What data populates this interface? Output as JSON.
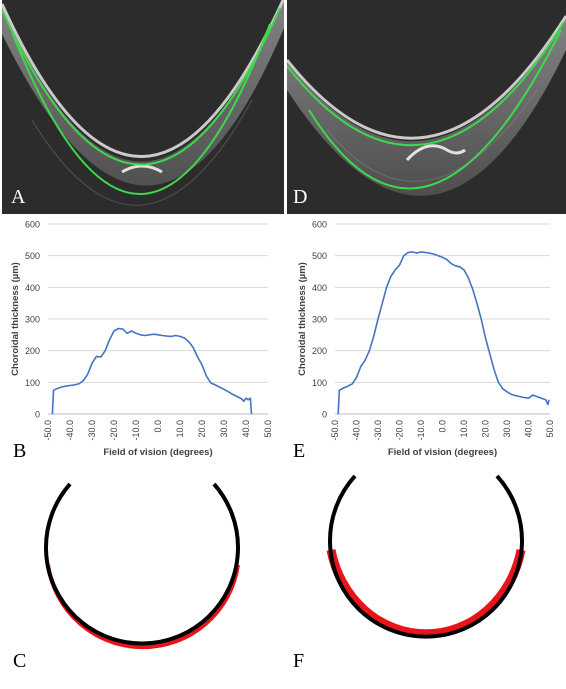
{
  "panels": {
    "A": {
      "letter": "A"
    },
    "B": {
      "letter": "B"
    },
    "C": {
      "letter": "C"
    },
    "D": {
      "letter": "D"
    },
    "E": {
      "letter": "E"
    },
    "F": {
      "letter": "F"
    }
  },
  "colors": {
    "oct_background": "#2a2a2a",
    "segmentation_line": "#3dd94a",
    "series_line": "#4472c4",
    "sclera_outline": "#000000",
    "choroid_outline": "#e8141a",
    "choroid_fill": "#efdcc0"
  },
  "chart_data": [
    {
      "type": "line",
      "panel": "B",
      "xlabel": "Field of vision (degrees)",
      "ylabel": "Choroidal thickness (µm)",
      "ylim": [
        0,
        600
      ],
      "xlim": [
        -50,
        50
      ],
      "yticks": [
        "0",
        "100",
        "200",
        "300",
        "400",
        "500",
        "600"
      ],
      "xticks": [
        "-50.0",
        "-40.0",
        "-30.0",
        "-20.0",
        "-10.0",
        "0.0",
        "10.0",
        "20.0",
        "30.0",
        "40.0",
        "50.0"
      ],
      "grid": "horizontal",
      "x": [
        -48,
        -47.5,
        -46,
        -44,
        -42,
        -40,
        -38,
        -36,
        -34,
        -32,
        -30,
        -28,
        -26,
        -24,
        -22,
        -20,
        -18,
        -16,
        -14,
        -12,
        -10,
        -8,
        -6,
        -4,
        -2,
        0,
        2,
        4,
        6,
        8,
        10,
        12,
        14,
        16,
        18,
        20,
        22,
        24,
        26,
        28,
        30,
        32,
        34,
        36,
        38,
        39,
        40,
        41,
        42,
        42.5
      ],
      "y": [
        0,
        75,
        80,
        85,
        88,
        90,
        92,
        95,
        105,
        125,
        160,
        182,
        180,
        200,
        235,
        262,
        270,
        268,
        255,
        262,
        255,
        250,
        248,
        250,
        252,
        250,
        248,
        246,
        245,
        248,
        245,
        240,
        228,
        210,
        180,
        155,
        120,
        98,
        92,
        85,
        78,
        70,
        62,
        55,
        48,
        40,
        50,
        45,
        50,
        0
      ]
    },
    {
      "type": "line",
      "panel": "E",
      "xlabel": "Field of vision (degrees)",
      "ylabel": "Choroidal thickness (µm)",
      "ylim": [
        0,
        600
      ],
      "xlim": [
        -50,
        50
      ],
      "yticks": [
        "0",
        "100",
        "200",
        "300",
        "400",
        "500",
        "600"
      ],
      "xticks": [
        "-50.0",
        "-40.0",
        "-30.0",
        "-20.0",
        "-10.0",
        "0.0",
        "10.0",
        "20.0",
        "30.0",
        "40.0",
        "50.0"
      ],
      "grid": "horizontal",
      "x": [
        -48.5,
        -48,
        -46,
        -44,
        -42,
        -40,
        -38,
        -36,
        -34,
        -32,
        -30,
        -28,
        -26,
        -24,
        -22,
        -20,
        -18,
        -16,
        -14,
        -12,
        -10,
        -8,
        -6,
        -4,
        -2,
        0,
        2,
        4,
        6,
        8,
        10,
        12,
        14,
        16,
        18,
        20,
        22,
        24,
        26,
        28,
        30,
        32,
        34,
        36,
        38,
        40,
        42,
        44,
        46,
        48,
        49,
        49.5
      ],
      "y": [
        0,
        75,
        82,
        88,
        95,
        115,
        150,
        170,
        200,
        245,
        300,
        350,
        400,
        435,
        455,
        470,
        500,
        510,
        512,
        508,
        512,
        510,
        508,
        505,
        500,
        495,
        488,
        475,
        468,
        465,
        455,
        430,
        395,
        350,
        300,
        240,
        190,
        140,
        100,
        80,
        70,
        62,
        58,
        55,
        52,
        50,
        60,
        55,
        50,
        45,
        30,
        45
      ]
    }
  ]
}
